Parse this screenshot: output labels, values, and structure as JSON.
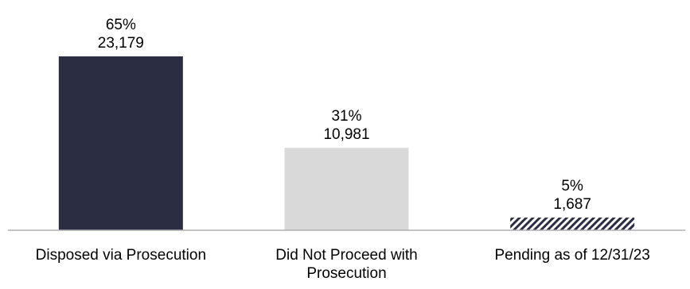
{
  "chart_data": {
    "type": "bar",
    "categories": [
      [
        "Disposed via Prosecution"
      ],
      [
        "Did Not Proceed with",
        "Prosecution"
      ],
      [
        "Pending as of 12/31/23"
      ]
    ],
    "values": [
      23179,
      10981,
      1687
    ],
    "value_labels": [
      "23,179",
      "10,981",
      "1,687"
    ],
    "percent_labels": [
      "65%",
      "31%",
      "5%"
    ],
    "bar_styles": [
      "solid",
      "solid",
      "hatched"
    ],
    "colors": [
      "#2b2e43",
      "#d9d9d9",
      "#2b2e43"
    ],
    "axis_color": "#b0b0b0",
    "ylim": [
      0,
      23179
    ],
    "grid": false,
    "legend": "none"
  }
}
